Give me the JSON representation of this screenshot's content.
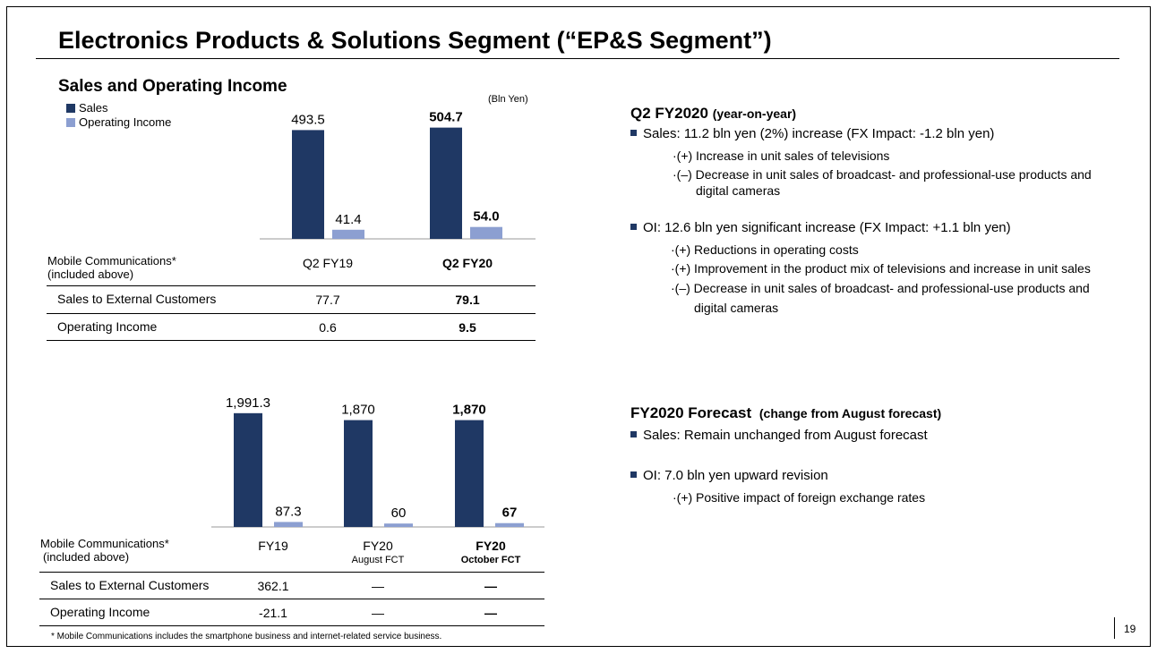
{
  "title": "Electronics Products & Solutions Segment (“EP&S Segment”)",
  "subtitle": "Sales and Operating Income",
  "unit": "(Bln Yen)",
  "legend": {
    "sales": "Sales",
    "oi": "Operating Income"
  },
  "colors": {
    "sales": "#1f3864",
    "oi": "#8c9fd1",
    "bullet": "#1f3864"
  },
  "chart_data": [
    {
      "type": "bar",
      "title": "Sales and Operating Income",
      "categories": [
        "Q2 FY19",
        "Q2 FY20"
      ],
      "series": [
        {
          "name": "Sales",
          "values": [
            493.5,
            504.7
          ],
          "labels": [
            "493.5",
            "504.7"
          ]
        },
        {
          "name": "Operating Income",
          "values": [
            41.4,
            54.0
          ],
          "labels": [
            "41.4",
            "54.0"
          ]
        }
      ],
      "bold_category_index": 1,
      "ylim": [
        0,
        560
      ]
    },
    {
      "type": "bar",
      "categories": [
        "FY19",
        "FY20 August FCT",
        "FY20 October FCT"
      ],
      "series": [
        {
          "name": "Sales",
          "values": [
            1991.3,
            1870,
            1870
          ],
          "labels": [
            "1,991.3",
            "1,870",
            "1,870"
          ]
        },
        {
          "name": "Operating Income",
          "values": [
            87.3,
            60,
            67
          ],
          "labels": [
            "87.3",
            "60",
            "67"
          ]
        }
      ],
      "bold_category_index": 2,
      "ylim": [
        0,
        2200
      ]
    }
  ],
  "table1": {
    "label_line1": "Mobile Communications*",
    "label_line2": "(included above)",
    "columns": [
      "Q2 FY19",
      "Q2 FY20"
    ],
    "rows": [
      {
        "label": "Sales to External Customers",
        "values": [
          "77.7",
          "79.1"
        ]
      },
      {
        "label": "Operating Income",
        "values": [
          "0.6",
          "9.5"
        ]
      }
    ]
  },
  "table2": {
    "label_line1": "Mobile Communications*",
    "label_line2": "(included above)",
    "columns": [
      {
        "main": "FY19",
        "sub": ""
      },
      {
        "main": "FY20",
        "sub": "August FCT"
      },
      {
        "main": "FY20",
        "sub": "October FCT"
      }
    ],
    "rows": [
      {
        "label": "Sales to External Customers",
        "values": [
          "362.1",
          "—",
          "—"
        ]
      },
      {
        "label": "Operating Income",
        "values": [
          "-21.1",
          "—",
          "—"
        ]
      }
    ]
  },
  "footnote": "* Mobile Communications includes the smartphone business and internet-related service business.",
  "right": {
    "q2_heading": "Q2 FY2020",
    "q2_heading_note": "(year-on-year)",
    "sales_bullet": "Sales: 11.2 bln yen (2%) increase (FX Impact: -1.2 bln yen)",
    "sales_subs": [
      "·(+) Increase in unit sales of televisions",
      "·(–) Decrease in unit sales of broadcast- and professional-use products and",
      "digital cameras"
    ],
    "oi_bullet": "OI: 12.6 bln yen significant increase (FX Impact: +1.1 bln yen)",
    "oi_subs": [
      "·(+) Reductions in operating costs",
      "·(+) Improvement in the product mix of televisions and increase in unit sales",
      "·(–) Decrease in unit sales of broadcast- and professional-use products and",
      "digital cameras"
    ],
    "fc_heading": "FY2020 Forecast",
    "fc_heading_note": "(change from August forecast)",
    "fc_sales_bullet": "Sales: Remain unchanged from August forecast",
    "fc_oi_bullet": "OI: 7.0 bln yen upward revision",
    "fc_oi_subs": [
      "·(+) Positive impact of foreign exchange rates"
    ]
  },
  "page_number": "19"
}
